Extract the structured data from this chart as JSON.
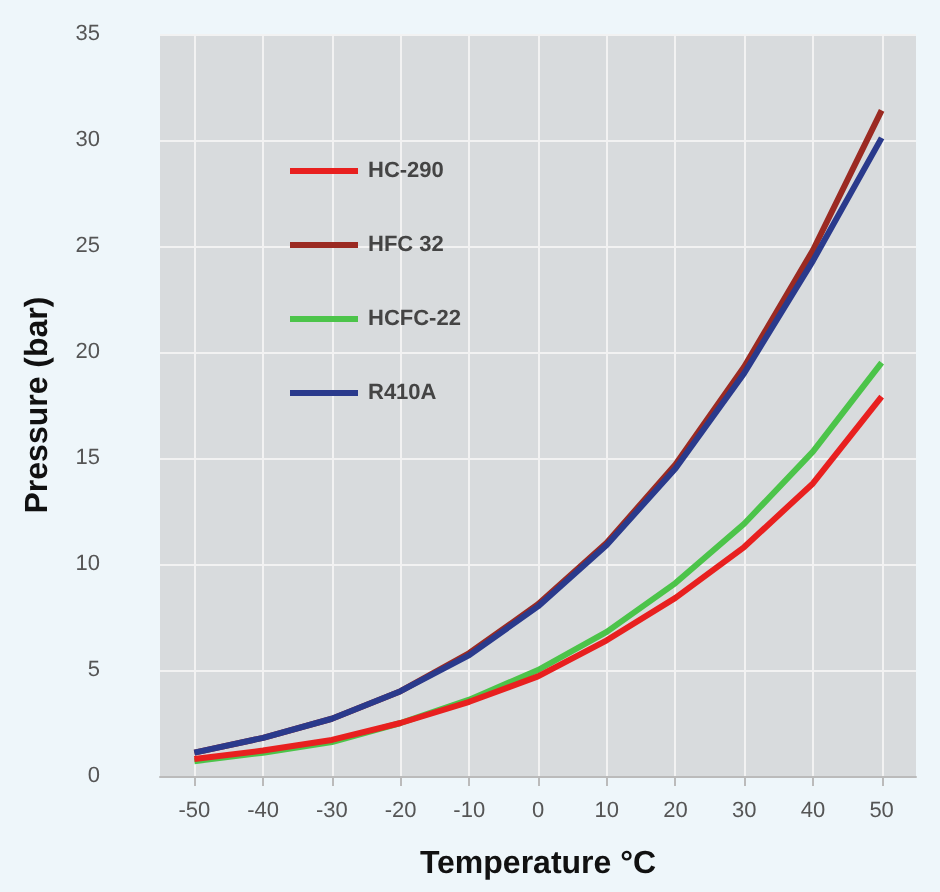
{
  "chart_data": {
    "type": "line",
    "xlabel": "Temperature °C",
    "ylabel": "Pressure (bar)",
    "x": [
      -50,
      -40,
      -30,
      -20,
      -10,
      0,
      10,
      20,
      30,
      40,
      50
    ],
    "series": [
      {
        "name": "HC-290",
        "color": "#e8201f",
        "values": [
          0.8,
          1.2,
          1.7,
          2.5,
          3.5,
          4.7,
          6.4,
          8.4,
          10.8,
          13.8,
          17.9
        ]
      },
      {
        "name": "HFC 32",
        "color": "#9b2a22",
        "values": [
          1.1,
          1.8,
          2.7,
          4.0,
          5.8,
          8.1,
          11.0,
          14.7,
          19.3,
          24.8,
          31.4
        ]
      },
      {
        "name": "HCFC-22",
        "color": "#4cc44a",
        "values": [
          0.7,
          1.1,
          1.6,
          2.5,
          3.6,
          5.0,
          6.8,
          9.1,
          11.9,
          15.3,
          19.5
        ]
      },
      {
        "name": "R410A",
        "color": "#2a3a8c",
        "values": [
          1.1,
          1.8,
          2.7,
          4.0,
          5.7,
          8.0,
          10.9,
          14.5,
          19.0,
          24.3,
          30.1
        ]
      }
    ],
    "xlim": [
      -55,
      55
    ],
    "xticks": [
      -50,
      -40,
      -30,
      -20,
      -10,
      0,
      10,
      20,
      30,
      40,
      50
    ],
    "ylim": [
      0,
      35
    ],
    "yticks": [
      0,
      5,
      10,
      15,
      20,
      25,
      30,
      35
    ],
    "grid": true,
    "legend": "top left",
    "marker": "none",
    "line_style": "solid"
  }
}
